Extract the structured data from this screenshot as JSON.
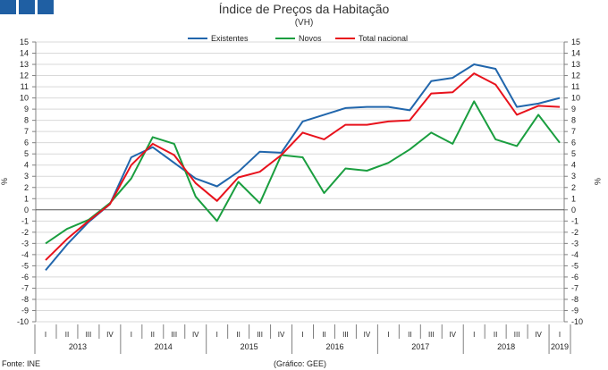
{
  "header": {
    "title": "Índice de Preços da Habitação",
    "subtitle": "(VH)"
  },
  "footer": {
    "source": "Fonte: INE",
    "credit": "(Gráfico: GEE)"
  },
  "colors": {
    "logo": "#1f5fa3",
    "grid": "#d9d9d9",
    "axis": "#808080",
    "existentes": "#2166ac",
    "novos": "#1a9e3f",
    "total": "#e8121c"
  },
  "chart_data": {
    "type": "line",
    "title": "Índice de Preços da Habitação",
    "subtitle": "(VH)",
    "ylabel": "%",
    "ylabel_right": "%",
    "ylim": [
      -10,
      15
    ],
    "yticks": [
      -10,
      -9,
      -8,
      -7,
      -6,
      -5,
      -4,
      -3,
      -2,
      -1,
      0,
      1,
      2,
      3,
      4,
      5,
      6,
      7,
      8,
      9,
      10,
      11,
      12,
      13,
      14,
      15
    ],
    "grid": true,
    "legend_position": "top-center",
    "quarters": [
      "I",
      "II",
      "III",
      "IV",
      "I",
      "II",
      "III",
      "IV",
      "I",
      "II",
      "III",
      "IV",
      "I",
      "II",
      "III",
      "IV",
      "I",
      "II",
      "III",
      "IV",
      "I",
      "II",
      "III",
      "IV",
      "I"
    ],
    "years": [
      {
        "label": "2013",
        "quarters": 4
      },
      {
        "label": "2014",
        "quarters": 4
      },
      {
        "label": "2015",
        "quarters": 4
      },
      {
        "label": "2016",
        "quarters": 4
      },
      {
        "label": "2017",
        "quarters": 4
      },
      {
        "label": "2018",
        "quarters": 4
      },
      {
        "label": "2019",
        "quarters": 1
      }
    ],
    "series": [
      {
        "name": "Existentes",
        "color": "#2166ac",
        "values": [
          -5.4,
          -3.1,
          -1.1,
          0.5,
          4.7,
          5.6,
          4.2,
          2.8,
          2.1,
          3.4,
          5.2,
          5.1,
          7.9,
          8.5,
          9.1,
          9.2,
          9.2,
          8.9,
          11.5,
          11.8,
          13.0,
          12.6,
          9.2,
          9.5,
          10.0
        ]
      },
      {
        "name": "Novos",
        "color": "#1a9e3f",
        "values": [
          -3.0,
          -1.7,
          -0.9,
          0.6,
          2.8,
          6.5,
          5.9,
          1.2,
          -1.0,
          2.5,
          0.6,
          4.9,
          4.7,
          1.5,
          3.7,
          3.5,
          4.2,
          5.4,
          6.9,
          5.9,
          9.7,
          6.3,
          5.7,
          8.5,
          6.0
        ]
      },
      {
        "name": "Total nacional",
        "color": "#e8121c",
        "values": [
          -4.5,
          -2.6,
          -1.0,
          0.5,
          4.0,
          5.9,
          4.9,
          2.4,
          0.8,
          2.9,
          3.4,
          4.9,
          6.9,
          6.3,
          7.6,
          7.6,
          7.9,
          8.0,
          10.4,
          10.5,
          12.2,
          11.2,
          8.5,
          9.3,
          9.2
        ]
      }
    ]
  }
}
